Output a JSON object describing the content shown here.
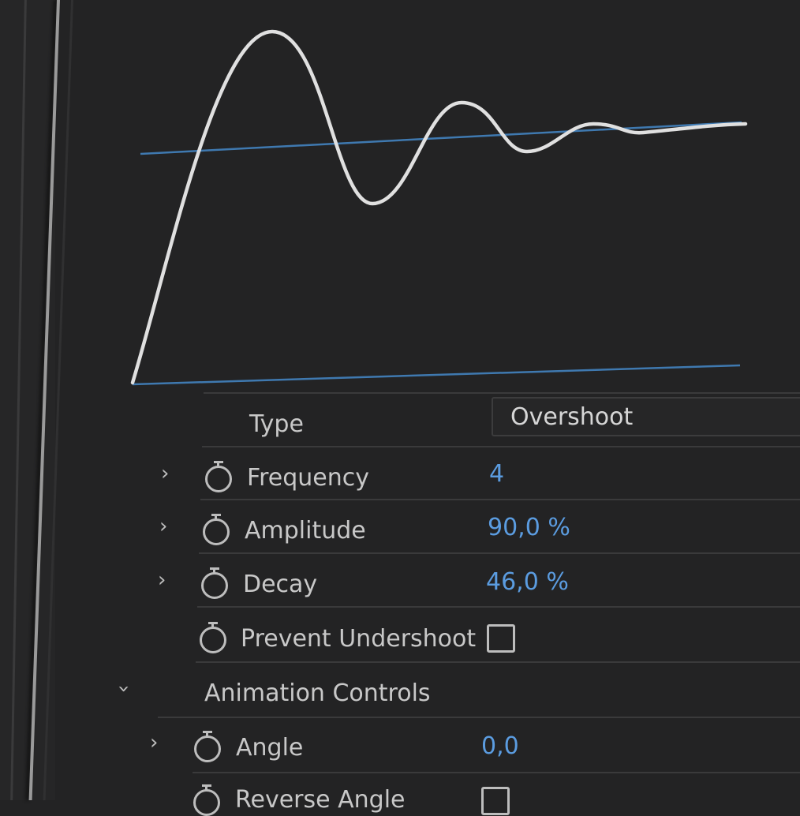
{
  "graph": {
    "curve_color": "#e0e0e0",
    "guide_color": "#3f79b0"
  },
  "properties": {
    "type": {
      "label": "Type",
      "value": "Overshoot"
    },
    "frequency": {
      "label": "Frequency",
      "value": "4"
    },
    "amplitude": {
      "label": "Amplitude",
      "value": "90,0 %"
    },
    "decay": {
      "label": "Decay",
      "value": "46,0 %"
    },
    "prevent_undershoot": {
      "label": "Prevent Undershoot",
      "checked": false
    }
  },
  "animation_controls": {
    "label": "Animation Controls",
    "angle": {
      "label": "Angle",
      "value": "0,0"
    },
    "reverse_angle": {
      "label": "Reverse Angle",
      "checked": false
    }
  },
  "value_color": "#5b9ce0"
}
